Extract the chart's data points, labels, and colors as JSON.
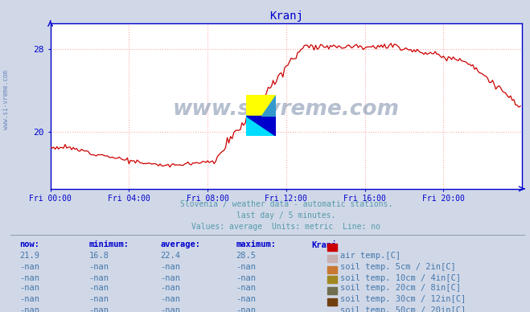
{
  "title": "Kranj",
  "title_color": "#0000cc",
  "bg_color": "#d0d8e8",
  "plot_bg_color": "#ffffff",
  "grid_color": "#ffaaaa",
  "axis_color": "#0000cc",
  "line_color": "#cc0000",
  "ytick_labels": [
    "20",
    "28"
  ],
  "ytick_vals": [
    20,
    28
  ],
  "ylim_min": 14.5,
  "ylim_max": 30.5,
  "xlim_min": 0,
  "xlim_max": 288,
  "xtick_labels": [
    "Fri 00:00",
    "Fri 04:00",
    "Fri 08:00",
    "Fri 12:00",
    "Fri 16:00",
    "Fri 20:00"
  ],
  "xtick_positions": [
    0,
    48,
    96,
    144,
    192,
    240
  ],
  "footer_line1": "Slovenia / weather data - automatic stations.",
  "footer_line2": "last day / 5 minutes.",
  "footer_line3": "Values: average  Units: metric  Line: no",
  "footer_color": "#5599aa",
  "table_header_color": "#0000cc",
  "table_data_color": "#4477aa",
  "table_headers": [
    "now:",
    "minimum:",
    "average:",
    "maximum:",
    "Kranj"
  ],
  "table_row1_vals": [
    "21.9",
    "16.8",
    "22.4",
    "28.5"
  ],
  "table_row1_label": "air temp.[C]",
  "table_row1_color": "#cc0000",
  "table_rows_nan": [
    [
      "soil temp. 5cm / 2in[C]",
      "#c8b0b0"
    ],
    [
      "soil temp. 10cm / 4in[C]",
      "#c87832"
    ],
    [
      "soil temp. 20cm / 8in[C]",
      "#a08820"
    ],
    [
      "soil temp. 30cm / 12in[C]",
      "#707050"
    ],
    [
      "soil temp. 50cm / 20in[C]",
      "#704010"
    ]
  ],
  "watermark_text": "www.si-vreme.com",
  "watermark_color": "#1a3a6a",
  "watermark_alpha": 0.32,
  "sidebar_text": "www.si-vreme.com",
  "sidebar_color": "#4466aa",
  "sidebar_alpha": 0.7
}
